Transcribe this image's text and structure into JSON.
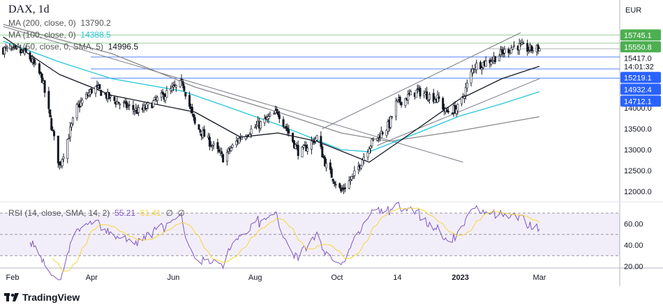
{
  "header": {
    "symbol": "DAX, 1d"
  },
  "legend": {
    "ma200": {
      "label": "MA (200, close, 0)",
      "value": "13790.2"
    },
    "ma100": {
      "label": "MA (100, close, 0)",
      "value": "14388.5"
    },
    "ma50": {
      "label": "MA (50, close, 0, SMA, 5)",
      "value": "14996.5"
    },
    "rsi": {
      "label": "RSI (14, close, SMA, 14, 2)",
      "value": "55.21",
      "sma": "61.41",
      "extra1": "∅",
      "extra2": "∅"
    }
  },
  "colors": {
    "ma200": "#888888",
    "ma100": "#26c6da",
    "ma50": "#131722",
    "rsi": "#7e57c2",
    "rsi_sma": "#f5d63d",
    "support": "#2962ff",
    "resistance": "#4caf50"
  },
  "chart_data": {
    "type": "candlestick",
    "currency": "EUR",
    "price_ylim": [
      11700,
      16300
    ],
    "price_ticks": [
      "14000.0",
      "13500.0",
      "13000.0",
      "12500.0",
      "12000.0"
    ],
    "last_price": "15417.0",
    "countdown": "14:01:32",
    "horizontal_levels": {
      "resistance": [
        "15745.1",
        "15550.8"
      ],
      "support": [
        "15219.1",
        "14932.4",
        "14712.1"
      ]
    },
    "close_path": [
      [
        "2022-01-25",
        15400
      ],
      [
        "2022-02-12",
        15300
      ],
      [
        "2022-02-23",
        14700
      ],
      [
        "2022-03-08",
        12600
      ],
      [
        "2022-03-21",
        14000
      ],
      [
        "2022-04-03",
        14500
      ],
      [
        "2022-04-16",
        14200
      ],
      [
        "2022-05-07",
        13900
      ],
      [
        "2022-05-20",
        14200
      ],
      [
        "2022-06-08",
        14600
      ],
      [
        "2022-06-17",
        13600
      ],
      [
        "2022-07-08",
        12800
      ],
      [
        "2022-07-21",
        13300
      ],
      [
        "2022-08-18",
        13900
      ],
      [
        "2022-09-03",
        12900
      ],
      [
        "2022-09-16",
        13300
      ],
      [
        "2022-09-23",
        12600
      ],
      [
        "2022-10-04",
        12000
      ],
      [
        "2022-10-14",
        12400
      ],
      [
        "2022-10-25",
        13100
      ],
      [
        "2022-11-09",
        13600
      ],
      [
        "2022-11-14",
        14100
      ],
      [
        "2022-11-30",
        14400
      ],
      [
        "2022-12-16",
        14200
      ],
      [
        "2022-12-21",
        13900
      ],
      [
        "2022-12-31",
        14000
      ],
      [
        "2023-01-11",
        15000
      ],
      [
        "2023-01-21",
        15100
      ],
      [
        "2023-02-11",
        15500
      ],
      [
        "2023-02-21",
        15400
      ],
      [
        "2023-03-01",
        15417
      ]
    ],
    "ma200": [
      [
        "2022-01-25",
        16000
      ],
      [
        "2022-04-16",
        15300
      ],
      [
        "2022-06-17",
        14500
      ],
      [
        "2022-08-18",
        13900
      ],
      [
        "2022-10-04",
        13400
      ],
      [
        "2022-11-09",
        13200
      ],
      [
        "2022-12-31",
        13450
      ],
      [
        "2023-03-01",
        13790
      ]
    ],
    "ma100": [
      [
        "2022-01-25",
        15600
      ],
      [
        "2022-03-08",
        15100
      ],
      [
        "2022-04-16",
        14700
      ],
      [
        "2022-06-08",
        14400
      ],
      [
        "2022-08-18",
        13600
      ],
      [
        "2022-10-04",
        13000
      ],
      [
        "2022-10-25",
        12950
      ],
      [
        "2022-11-30",
        13400
      ],
      [
        "2022-12-31",
        13800
      ],
      [
        "2023-02-01",
        14100
      ],
      [
        "2023-03-01",
        14388
      ]
    ],
    "ma50": [
      [
        "2022-01-25",
        15700
      ],
      [
        "2022-03-08",
        14800
      ],
      [
        "2022-04-16",
        14300
      ],
      [
        "2022-06-17",
        13900
      ],
      [
        "2022-07-21",
        13300
      ],
      [
        "2022-08-18",
        13400
      ],
      [
        "2022-09-16",
        13200
      ],
      [
        "2022-10-25",
        12700
      ],
      [
        "2022-11-30",
        13500
      ],
      [
        "2022-12-31",
        14200
      ],
      [
        "2023-02-01",
        14700
      ],
      [
        "2023-03-01",
        14997
      ]
    ],
    "trendlines": [
      [
        [
          "2022-01-25",
          15950
        ],
        [
          "2023-01-03",
          12700
        ]
      ],
      [
        [
          "2022-09-20",
          13500
        ],
        [
          "2023-02-15",
          15800
        ]
      ],
      [
        [
          "2022-10-31",
          13100
        ],
        [
          "2023-03-01",
          14700
        ]
      ]
    ],
    "rsi_ylim": [
      15,
      85
    ],
    "rsi_ticks": [
      "60.00",
      "40.00",
      "20.00"
    ],
    "rsi_bands": [
      70,
      50,
      30
    ],
    "time_ticks": [
      [
        "2022-02-01",
        "Feb"
      ],
      [
        "2022-04-01",
        "Apr"
      ],
      [
        "2022-06-01",
        "Jun"
      ],
      [
        "2022-08-01",
        "Aug"
      ],
      [
        "2022-10-01",
        "Oct"
      ],
      [
        "2022-11-15",
        "14"
      ],
      [
        "2023-01-01",
        "2023"
      ],
      [
        "2023-03-01",
        "Mar"
      ]
    ]
  },
  "footer": {
    "brand": "TradingView"
  }
}
